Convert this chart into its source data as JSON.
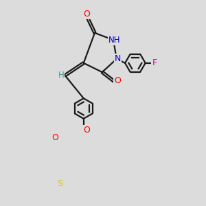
{
  "bg_color": "#dcdcdc",
  "bond_color": "#1a1a1a",
  "atom_colors": {
    "O": "#ff0000",
    "N": "#0000cc",
    "S": "#cccc00",
    "F": "#cc00cc",
    "H_label": "#4a9999",
    "C": "#1a1a1a"
  },
  "figsize": [
    3.0,
    3.0
  ],
  "dpi": 100
}
